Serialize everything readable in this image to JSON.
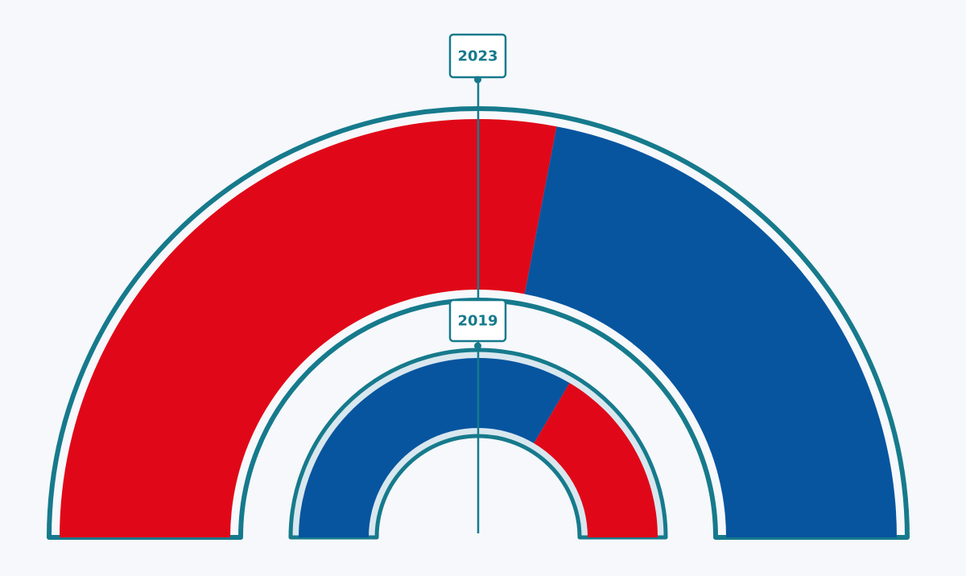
{
  "chart_data": {
    "type": "pie",
    "title": "",
    "colors": {
      "red": "#e00818",
      "blue": "#07559f",
      "outline": "#167a8c",
      "inner_highlight": "#d9e7ef",
      "background": "#f6f8fb"
    },
    "charts": [
      {
        "label": "2023",
        "segments": [
          {
            "color": "red",
            "value": 0.56
          },
          {
            "color": "blue",
            "value": 0.44
          }
        ]
      },
      {
        "label": "2019",
        "segments": [
          {
            "color": "blue",
            "value": 0.67
          },
          {
            "color": "red",
            "value": 0.33
          }
        ]
      }
    ]
  }
}
